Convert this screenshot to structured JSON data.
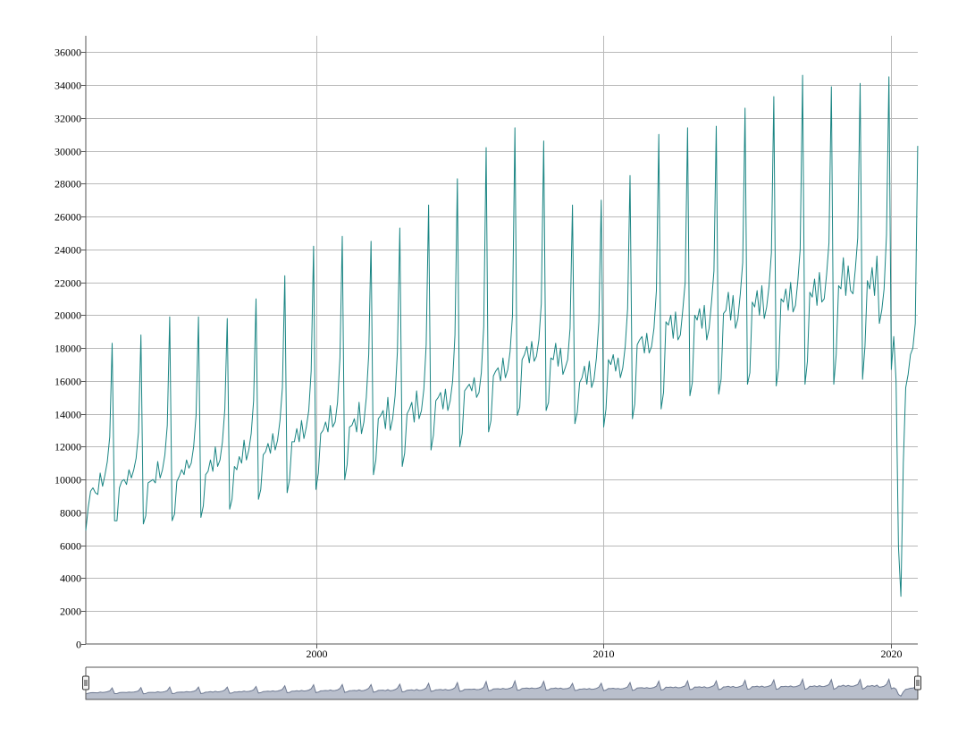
{
  "colors": {
    "series": "#1a8583",
    "navigator_fill": "#b9bfcc",
    "navigator_stroke": "#6f7a92",
    "grid": "#b9b9b9",
    "axis": "#555555"
  },
  "chart_data": {
    "type": "line",
    "title": "",
    "xlabel": "",
    "ylabel": "",
    "grid": true,
    "legend": "none",
    "x_range": [
      1992.0,
      2020.92
    ],
    "ylim": [
      0,
      37000
    ],
    "y_ticks": [
      "0",
      "2000",
      "4000",
      "6000",
      "8000",
      "10000",
      "12000",
      "14000",
      "16000",
      "18000",
      "20000",
      "22000",
      "24000",
      "26000",
      "28000",
      "30000",
      "32000",
      "34000",
      "36000"
    ],
    "x_ticks": [
      "2000",
      "2010",
      "2020"
    ],
    "x_tick_values": [
      2000,
      2010,
      2020
    ],
    "series": [
      {
        "x_start": "1992-01",
        "frequency": "monthly",
        "values": [
          6900,
          8300,
          9300,
          9500,
          9200,
          9100,
          10400,
          9600,
          10300,
          11100,
          12600,
          18300,
          7500,
          7500,
          9500,
          9900,
          10000,
          9700,
          10600,
          10100,
          10600,
          11300,
          12900,
          18800,
          7300,
          7800,
          9800,
          9900,
          10000,
          9800,
          11100,
          10100,
          10600,
          11500,
          13300,
          19900,
          7500,
          7900,
          9900,
          10200,
          10600,
          10300,
          11200,
          10700,
          11000,
          12000,
          13900,
          19900,
          7700,
          8400,
          10300,
          10500,
          11200,
          10500,
          12000,
          10800,
          11200,
          12300,
          14300,
          19800,
          8200,
          8800,
          10800,
          10600,
          11400,
          11000,
          12400,
          11200,
          11800,
          12800,
          14800,
          21000,
          8800,
          9400,
          11500,
          11700,
          12200,
          11600,
          12800,
          11800,
          12400,
          13600,
          15600,
          22400,
          9200,
          10000,
          12300,
          12300,
          13100,
          12300,
          13600,
          12500,
          13200,
          14200,
          16600,
          24200,
          9400,
          10400,
          12800,
          13000,
          13500,
          12900,
          14500,
          13200,
          13500,
          14700,
          17400,
          24800,
          10000,
          10900,
          13200,
          13300,
          13700,
          12900,
          14700,
          12800,
          13500,
          15000,
          17600,
          24500,
          10300,
          11200,
          13700,
          13900,
          14200,
          13100,
          15000,
          13000,
          13700,
          15100,
          17800,
          25300,
          10800,
          11600,
          14000,
          14300,
          14700,
          13500,
          15400,
          13700,
          14200,
          15500,
          18200,
          26700,
          11800,
          12700,
          14800,
          15000,
          15300,
          14300,
          15500,
          14200,
          14800,
          16000,
          18800,
          28300,
          12000,
          12800,
          15400,
          15600,
          15800,
          15400,
          16200,
          15000,
          15300,
          16500,
          19300,
          30200,
          12900,
          13600,
          16300,
          16600,
          16800,
          16000,
          17400,
          16200,
          16700,
          17800,
          20000,
          31400,
          13900,
          14400,
          17300,
          17600,
          18100,
          17100,
          18400,
          17200,
          17500,
          18500,
          20700,
          30600,
          14200,
          14700,
          17400,
          17300,
          18300,
          16900,
          18000,
          16400,
          16800,
          17300,
          19200,
          26700,
          13400,
          14100,
          15900,
          16200,
          16900,
          15800,
          17200,
          15600,
          16100,
          17400,
          19600,
          27000,
          13200,
          14300,
          17300,
          17000,
          17600,
          16600,
          17400,
          16200,
          16800,
          18100,
          20400,
          28500,
          13700,
          14600,
          18200,
          18500,
          18700,
          17700,
          18900,
          17700,
          18100,
          19200,
          21500,
          31000,
          14300,
          15300,
          19600,
          19400,
          20000,
          18600,
          20200,
          18500,
          18800,
          20300,
          22000,
          31400,
          15100,
          15900,
          20000,
          19700,
          20400,
          19200,
          20600,
          18500,
          19200,
          20800,
          22700,
          31500,
          15200,
          16100,
          20100,
          20300,
          21400,
          19700,
          21200,
          19200,
          19800,
          21300,
          23200,
          32600,
          15800,
          16500,
          20800,
          20500,
          21500,
          20000,
          21800,
          19800,
          20500,
          21800,
          23800,
          33300,
          15700,
          16800,
          21000,
          20800,
          21600,
          20300,
          22000,
          20200,
          20600,
          22100,
          24000,
          34600,
          15800,
          17200,
          21400,
          21100,
          22200,
          20600,
          22600,
          20800,
          21000,
          22500,
          24400,
          33900,
          15800,
          17600,
          21800,
          21600,
          23500,
          21200,
          23000,
          21500,
          21300,
          22800,
          24700,
          34100,
          16100,
          18100,
          22100,
          21600,
          22900,
          21200,
          23600,
          19500,
          20300,
          21600,
          24900,
          34500,
          16700,
          18700,
          16000,
          5900,
          2900,
          11000,
          15600,
          16400,
          17600,
          18000,
          19500,
          30300
        ]
      }
    ]
  }
}
